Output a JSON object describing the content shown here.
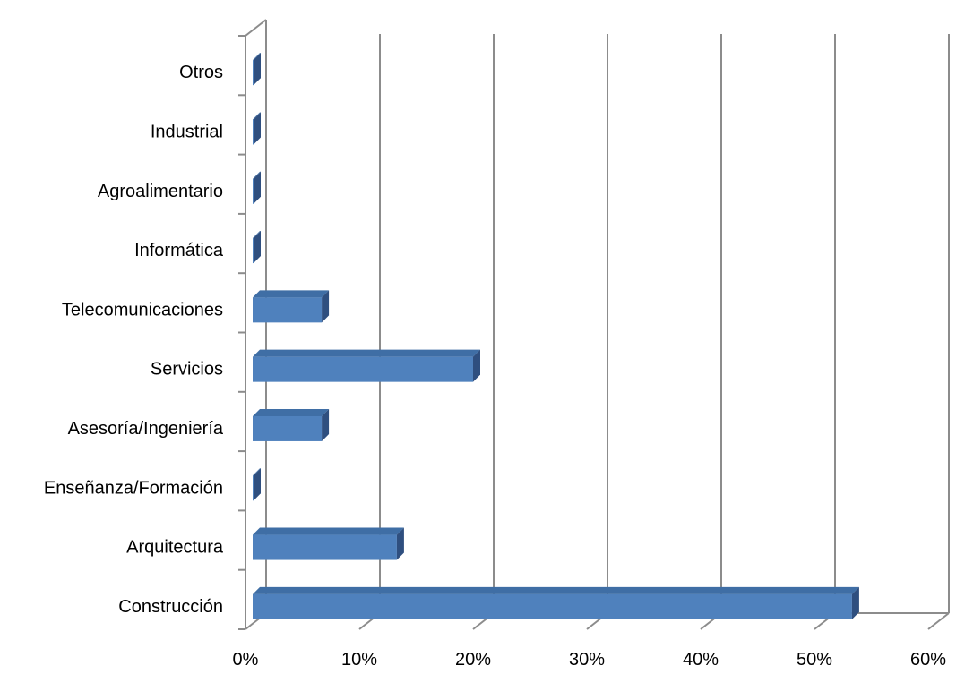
{
  "chart_data": {
    "type": "bar",
    "orientation": "horizontal",
    "style": "3d-clustered",
    "categories": [
      "Construcción",
      "Arquitectura",
      "Enseñanza/Formación",
      "Asesoría/Ingeniería",
      "Servicios",
      "Telecomunicaciones",
      "Informática",
      "Agroalimentario",
      "Industrial",
      "Otros"
    ],
    "values": [
      53.3,
      13.3,
      0,
      6.7,
      20,
      6.7,
      0,
      0,
      0,
      0
    ],
    "xlim": [
      0,
      60
    ],
    "xticks": [
      "0%",
      "10%",
      "20%",
      "30%",
      "40%",
      "50%",
      "60%"
    ],
    "title": "",
    "xlabel": "",
    "ylabel": "",
    "grid": "vertical",
    "legend": "none",
    "colors": {
      "bar_front": "#4F81BD",
      "bar_top": "#3F6EA5",
      "bar_side": "#2F4F7F",
      "grid": "#8C8C8C",
      "axis": "#8C8C8C"
    }
  }
}
